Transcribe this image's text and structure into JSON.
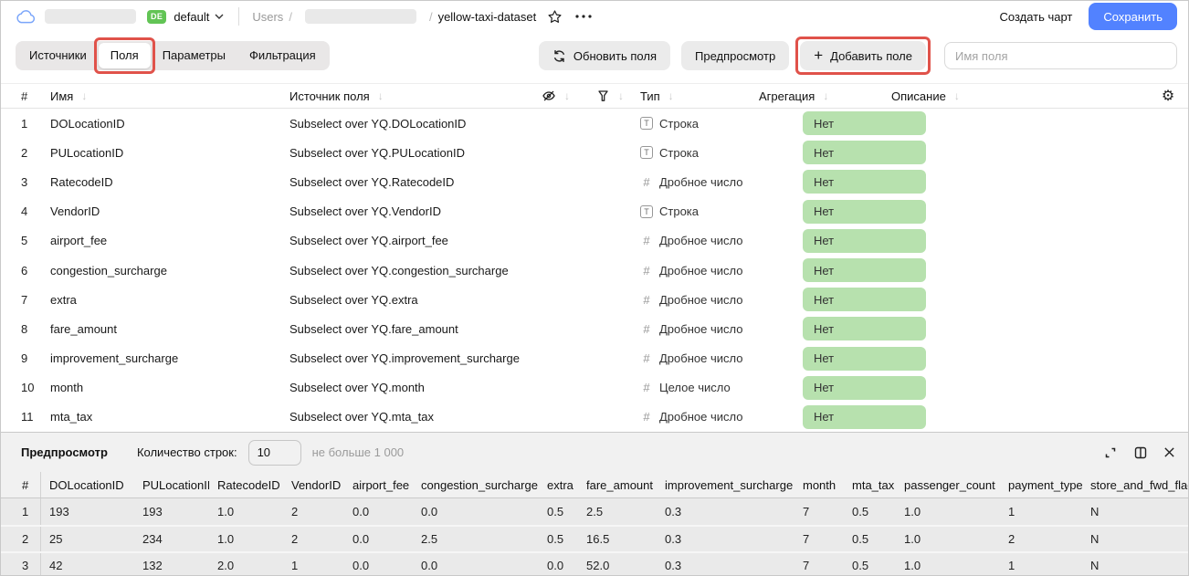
{
  "header": {
    "env_badge": "DE",
    "folder": "default",
    "breadcrumb": {
      "root": "Users",
      "sep": "/",
      "dataset": "yellow-taxi-dataset"
    },
    "actions": {
      "create_chart": "Создать чарт",
      "save": "Сохранить"
    }
  },
  "toolbar": {
    "tabs": [
      {
        "id": "sources",
        "label": "Источники",
        "active": false,
        "annotated": false
      },
      {
        "id": "fields",
        "label": "Поля",
        "active": true,
        "annotated": true
      },
      {
        "id": "parameters",
        "label": "Параметры",
        "active": false,
        "annotated": false
      },
      {
        "id": "filtering",
        "label": "Фильтрация",
        "active": false,
        "annotated": false
      }
    ],
    "refresh_fields": "Обновить поля",
    "preview": "Предпросмотр",
    "add_field": "Добавить поле",
    "field_name_placeholder": "Имя поля"
  },
  "fields_table": {
    "columns": {
      "num": "#",
      "name": "Имя",
      "source": "Источник поля",
      "type": "Тип",
      "aggregation": "Агрегация",
      "description": "Описание"
    },
    "rows": [
      {
        "num": "1",
        "name": "DOLocationID",
        "source": "Subselect over YQ.DOLocationID",
        "type_kind": "string",
        "type": "Строка",
        "aggregation": "Нет"
      },
      {
        "num": "2",
        "name": "PULocationID",
        "source": "Subselect over YQ.PULocationID",
        "type_kind": "string",
        "type": "Строка",
        "aggregation": "Нет"
      },
      {
        "num": "3",
        "name": "RatecodeID",
        "source": "Subselect over YQ.RatecodeID",
        "type_kind": "number",
        "type": "Дробное число",
        "aggregation": "Нет"
      },
      {
        "num": "4",
        "name": "VendorID",
        "source": "Subselect over YQ.VendorID",
        "type_kind": "string",
        "type": "Строка",
        "aggregation": "Нет"
      },
      {
        "num": "5",
        "name": "airport_fee",
        "source": "Subselect over YQ.airport_fee",
        "type_kind": "number",
        "type": "Дробное число",
        "aggregation": "Нет"
      },
      {
        "num": "6",
        "name": "congestion_surcharge",
        "source": "Subselect over YQ.congestion_surcharge",
        "type_kind": "number",
        "type": "Дробное число",
        "aggregation": "Нет"
      },
      {
        "num": "7",
        "name": "extra",
        "source": "Subselect over YQ.extra",
        "type_kind": "number",
        "type": "Дробное число",
        "aggregation": "Нет"
      },
      {
        "num": "8",
        "name": "fare_amount",
        "source": "Subselect over YQ.fare_amount",
        "type_kind": "number",
        "type": "Дробное число",
        "aggregation": "Нет"
      },
      {
        "num": "9",
        "name": "improvement_surcharge",
        "source": "Subselect over YQ.improvement_surcharge",
        "type_kind": "number",
        "type": "Дробное число",
        "aggregation": "Нет"
      },
      {
        "num": "10",
        "name": "month",
        "source": "Subselect over YQ.month",
        "type_kind": "number",
        "type": "Целое число",
        "aggregation": "Нет"
      },
      {
        "num": "11",
        "name": "mta_tax",
        "source": "Subselect over YQ.mta_tax",
        "type_kind": "number",
        "type": "Дробное число",
        "aggregation": "Нет"
      }
    ]
  },
  "preview_panel": {
    "title": "Предпросмотр",
    "row_count_label": "Количество строк:",
    "row_count_value": "10",
    "row_count_hint": "не больше 1 000",
    "columns": [
      "#",
      "DOLocationID",
      "PULocationID",
      "RatecodeID",
      "VendorID",
      "airport_fee",
      "congestion_surcharge",
      "extra",
      "fare_amount",
      "improvement_surcharge",
      "month",
      "mta_tax",
      "passenger_count",
      "payment_type",
      "store_and_fwd_flag"
    ],
    "rows": [
      [
        "1",
        "193",
        "193",
        "1.0",
        "2",
        "0.0",
        "0.0",
        "0.5",
        "2.5",
        "0.3",
        "7",
        "0.5",
        "1.0",
        "1",
        "N"
      ],
      [
        "2",
        "25",
        "234",
        "1.0",
        "2",
        "0.0",
        "2.5",
        "0.5",
        "16.5",
        "0.3",
        "7",
        "0.5",
        "1.0",
        "2",
        "N"
      ],
      [
        "3",
        "42",
        "132",
        "2.0",
        "1",
        "0.0",
        "0.0",
        "0.0",
        "52.0",
        "0.3",
        "7",
        "0.5",
        "1.0",
        "1",
        "N"
      ]
    ]
  },
  "colors": {
    "accent_blue": "#5282ff",
    "badge_green": "#62c455",
    "aggregation_pill_green": "#b7e1ae",
    "annotation_red": "#e0524a"
  }
}
